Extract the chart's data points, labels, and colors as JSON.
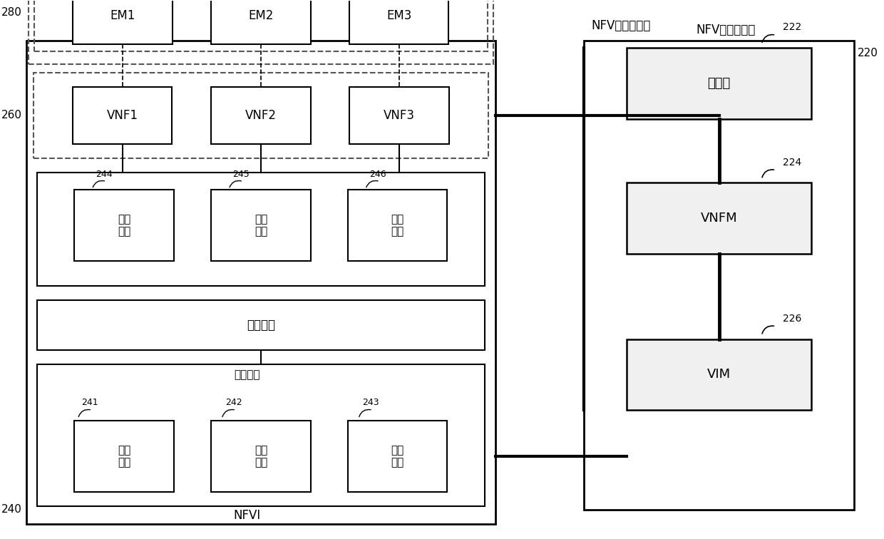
{
  "bg_color": "#ffffff",
  "fig_width": 12.4,
  "fig_height": 7.56,
  "labels": {
    "NFV_title": "NFV管理和编排",
    "NFVI_label": "NFVI",
    "label_280": "280",
    "label_260": "260",
    "label_240": "240",
    "label_220": "220",
    "label_222": "222",
    "label_224": "224",
    "label_226": "226",
    "label_241": "241",
    "label_242": "242",
    "label_243": "243",
    "label_244": "244",
    "label_245": "245",
    "label_246": "246",
    "EM1": "EM1",
    "EM2": "EM2",
    "EM3": "EM3",
    "VNF1": "VNF1",
    "VNF2": "VNF2",
    "VNF3": "VNF3",
    "virt_compute": "虚拟\n计算",
    "virt_storage": "虚拟\n存储",
    "virt_network": "虚拟\n网络",
    "virt_layer": "虚拟化层",
    "hw_resource": "硬件资源",
    "compute_hw": "计算\n硬件",
    "storage_hw": "存储\n硬件",
    "network_hw": "网络\n硬件",
    "orchestrator": "编排器",
    "VNFM": "VNFM",
    "VIM": "VIM"
  }
}
